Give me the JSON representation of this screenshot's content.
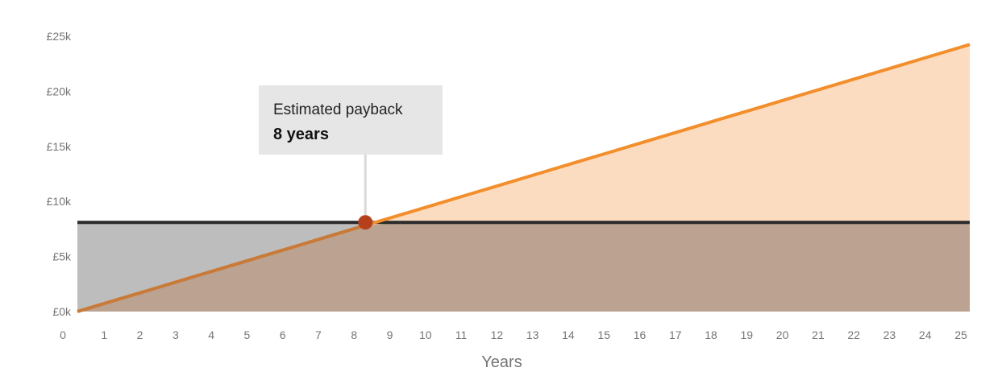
{
  "chart_data": {
    "type": "area",
    "x": [
      0,
      1,
      2,
      3,
      4,
      5,
      6,
      7,
      8,
      9,
      10,
      11,
      12,
      13,
      14,
      15,
      16,
      17,
      18,
      19,
      20,
      21,
      22,
      23,
      24,
      25
    ],
    "series": [
      {
        "role": "cost",
        "values": [
          8100,
          8100,
          8100,
          8100,
          8100,
          8100,
          8100,
          8100,
          8100,
          8100,
          8100,
          8100,
          8100,
          8100,
          8100,
          8100,
          8100,
          8100,
          8100,
          8100,
          8100,
          8100,
          8100,
          8100,
          8100,
          8100
        ],
        "line_color": "#2b2b2b",
        "fill_color": "#bdbdbd"
      },
      {
        "role": "savings",
        "values": [
          0,
          970,
          1940,
          2910,
          3880,
          4850,
          5820,
          6790,
          7760,
          8730,
          9700,
          10670,
          11640,
          12610,
          13580,
          14550,
          15520,
          16490,
          17460,
          18430,
          19400,
          20370,
          21340,
          22310,
          23280,
          24250
        ],
        "line_color": "#f28e2b",
        "fill_color": "#fbdcc0"
      }
    ],
    "overlap_fill_color": "#bba291",
    "overlap_line_color": "#c77a3a",
    "xlabel": "Years",
    "ylabel": "",
    "xlim": [
      0,
      25
    ],
    "ylim": [
      0,
      25000
    ],
    "y_ticks": [
      0,
      5000,
      10000,
      15000,
      20000,
      25000
    ],
    "y_tick_labels": [
      "£0k",
      "£5k",
      "£10k",
      "£15k",
      "£20k",
      "£25k"
    ],
    "x_tick_labels": [
      "0",
      "1",
      "2",
      "3",
      "4",
      "5",
      "6",
      "7",
      "8",
      "9",
      "10",
      "11",
      "12",
      "13",
      "14",
      "15",
      "16",
      "17",
      "18",
      "19",
      "20",
      "21",
      "22",
      "23",
      "24",
      "25"
    ],
    "grid": false,
    "payback": {
      "x": 8,
      "y": 8100,
      "marker_color": "#b5401b",
      "tooltip_title": "Estimated payback",
      "tooltip_value": "8 years"
    }
  }
}
